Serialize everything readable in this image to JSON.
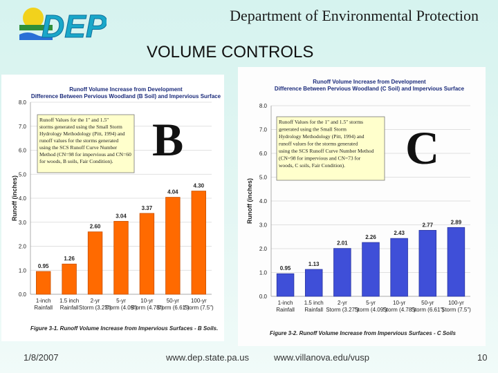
{
  "header": {
    "title": "Department of Environmental Protection",
    "logo_text": "DEP"
  },
  "slide_title": "VOLUME CONTROLS",
  "letters": {
    "left": "B",
    "right": "C"
  },
  "footer": {
    "date": "1/8/2007",
    "url_left": "www.dep.state.pa.us",
    "url_right": "www.villanova.edu/vusp",
    "page": "10"
  },
  "colors": {
    "left_bars": "#ff6a00",
    "right_bars": "#3f4fd8",
    "note_box": "#ffffcc"
  },
  "chart_data": [
    {
      "type": "bar",
      "title": "Runoff Volume Increase from Development",
      "subtitle": "Difference Between Pervious Woodland (B Soil) and Impervious Surface",
      "ylabel": "Runoff (inches)",
      "xlabel": "",
      "ylim": [
        0,
        8
      ],
      "yticks": [
        "0.0",
        "1.0",
        "2.0",
        "3.0",
        "4.0",
        "5.0",
        "6.0",
        "7.0",
        "8.0"
      ],
      "categories": [
        "1-inch Rainfall",
        "1.5 inch Rainfall",
        "2-yr Storm (3.27\")",
        "5-yr Storm (4.09\")",
        "10-yr Storm (4.78\")",
        "50-yr Storm (6.61\")",
        "100-yr Storm (7.5\")"
      ],
      "values": [
        0.95,
        1.26,
        2.6,
        3.04,
        3.37,
        4.04,
        4.3
      ],
      "value_labels": [
        "0.95",
        "1.26",
        "2.60",
        "3.04",
        "3.37",
        "4.04",
        "4.30"
      ],
      "note": "Runoff Values for the 1\" and 1.5\" storms generated using the Small Storm Hydrology Methodology (Pitt, 1994) and runoff values for the storms generated using the SCS Runoff Curve Number Method (CN=98 for impervious and CN=60 for woods, B soils, Fair Condition).",
      "caption": "Figure 3-1. Runoff Volume Increase from Impervious Surfaces - B Soils.",
      "grid": true
    },
    {
      "type": "bar",
      "title": "Runoff Volume Increase from Development",
      "subtitle": "Difference Between Pervious Woodland (C Soil) and Impervious Surface",
      "ylabel": "Runoff (inches)",
      "xlabel": "",
      "ylim": [
        0,
        8
      ],
      "yticks": [
        "0.0",
        "1.0",
        "2.0",
        "3.0",
        "4.0",
        "5.0",
        "6.0",
        "7.0",
        "8.0"
      ],
      "categories": [
        "1-inch Rainfall",
        "1.5 inch Rainfall",
        "2-yr Storm (3.27\")",
        "5-yr Storm (4.09\")",
        "10-yr Storm (4.78\")",
        "50-yr Storm (6.61\")",
        "100-yr Storm (7.5\")"
      ],
      "values": [
        0.95,
        1.13,
        2.01,
        2.26,
        2.43,
        2.77,
        2.89
      ],
      "value_labels": [
        "0.95",
        "1.13",
        "2.01",
        "2.26",
        "2.43",
        "2.77",
        "2.89"
      ],
      "note": "Runoff Values for the 1\" and 1.5\" storms generated using the Small Storm Hydrology Methodology (Pitt, 1994) and runoff values for the storms generated using the SCS Runoff Curve Number Method (CN=98 for impervious and CN=73 for woods, C soils, Fair Condition).",
      "caption": "Figure 3-2. Runoff Volume Increase from Impervious Surfaces - C Soils",
      "grid": true
    }
  ]
}
